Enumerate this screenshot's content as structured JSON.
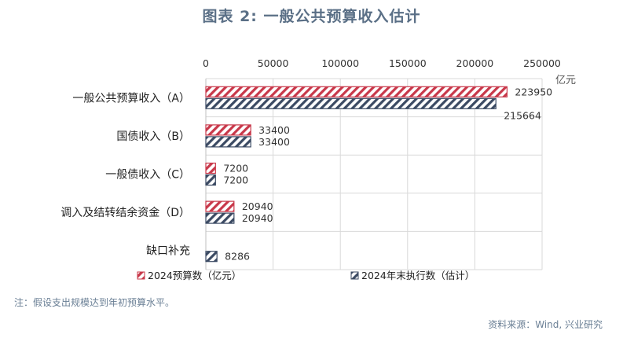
{
  "title": "图表 2:   一般公共预算收入估计",
  "note": "注：假设支出规模达到年初预算水平。",
  "source": "资料来源：Wind, 兴业研究",
  "colors": {
    "series1": "#c8384a",
    "series2": "#3b4a63",
    "grid": "#d9d9d9",
    "axis_text": "#333333"
  },
  "chart_data": {
    "type": "bar",
    "orientation": "horizontal",
    "unit": "亿元",
    "xlim": [
      0,
      250000
    ],
    "xticks": [
      0,
      50000,
      100000,
      150000,
      200000,
      250000
    ],
    "xtick_labels": [
      "0",
      "50000",
      "100000",
      "150000",
      "200000",
      "250000"
    ],
    "categories": [
      "一般公共预算收入（A）",
      "国债收入（B）",
      "一般债收入（C）",
      "调入及结转结余资金（D）",
      "缺口补充"
    ],
    "series": [
      {
        "name": "2024预算数（亿元）",
        "values": [
          223950,
          33400,
          7200,
          20940,
          null
        ],
        "pattern": "hatch-red"
      },
      {
        "name": "2024年末执行数（估计）",
        "values": [
          215664,
          33400,
          7200,
          20940,
          8286
        ],
        "pattern": "hatch-navy"
      }
    ],
    "grid": true,
    "legend_position": "bottom",
    "axis_position": "top"
  }
}
